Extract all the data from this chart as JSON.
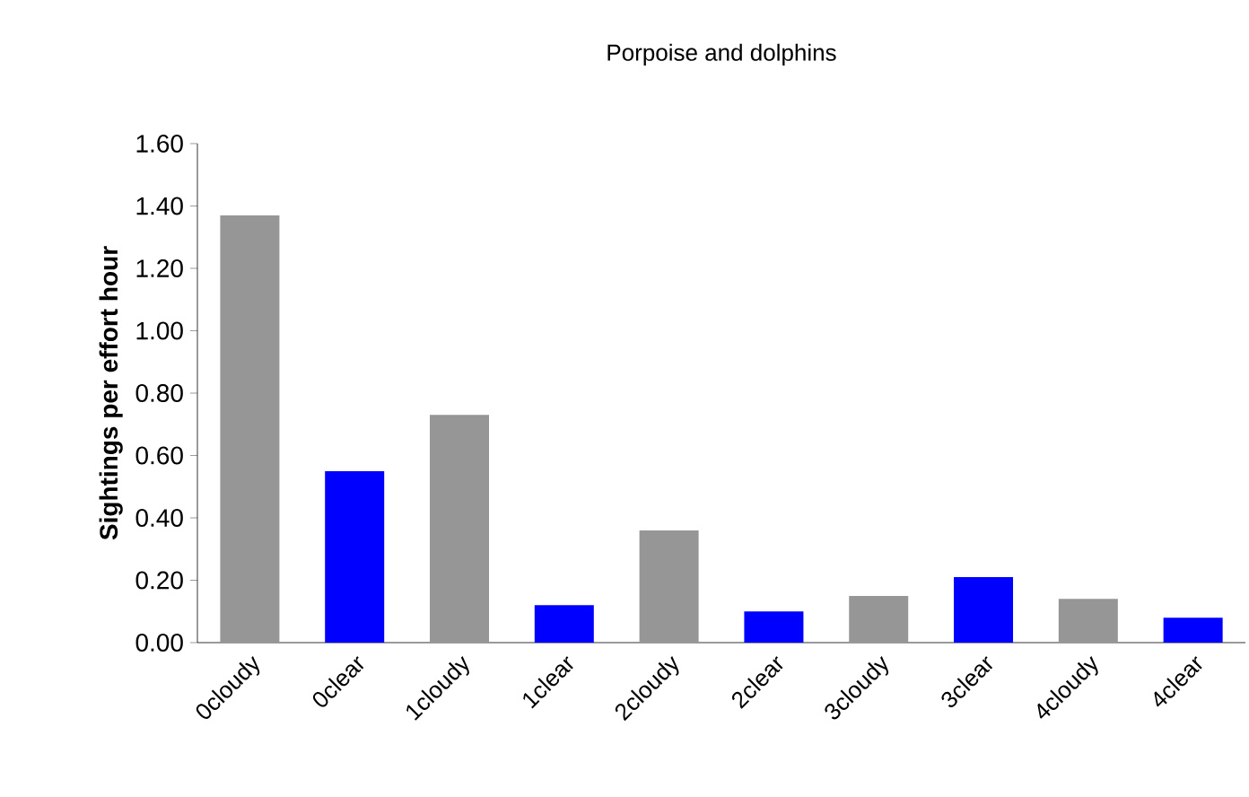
{
  "chart_data": {
    "type": "bar",
    "title": "Porpoise and dolphins",
    "ylabel": "Sightings per effort hour",
    "categories": [
      "0cloudy",
      "0clear",
      "1cloudy",
      "1clear",
      "2cloudy",
      "2clear",
      "3cloudy",
      "3clear",
      "4cloudy",
      "4clear"
    ],
    "values": [
      1.37,
      0.55,
      0.73,
      0.12,
      0.36,
      0.1,
      0.15,
      0.21,
      0.14,
      0.08
    ],
    "colors": [
      "#969696",
      "#0000ff",
      "#969696",
      "#0000ff",
      "#969696",
      "#0000ff",
      "#969696",
      "#0000ff",
      "#969696",
      "#0000ff"
    ],
    "ylim": [
      0,
      1.6
    ],
    "yticks": [
      {
        "value": 0,
        "label": "0.00"
      },
      {
        "value": 0.2,
        "label": "0.20"
      },
      {
        "value": 0.4,
        "label": "0.40"
      },
      {
        "value": 0.6,
        "label": "0.60"
      },
      {
        "value": 0.8,
        "label": "0.80"
      },
      {
        "value": 1.0,
        "label": "1.00"
      },
      {
        "value": 1.2,
        "label": "1.20"
      },
      {
        "value": 1.4,
        "label": "1.40"
      },
      {
        "value": 1.6,
        "label": "1.60"
      }
    ],
    "grid": false
  }
}
